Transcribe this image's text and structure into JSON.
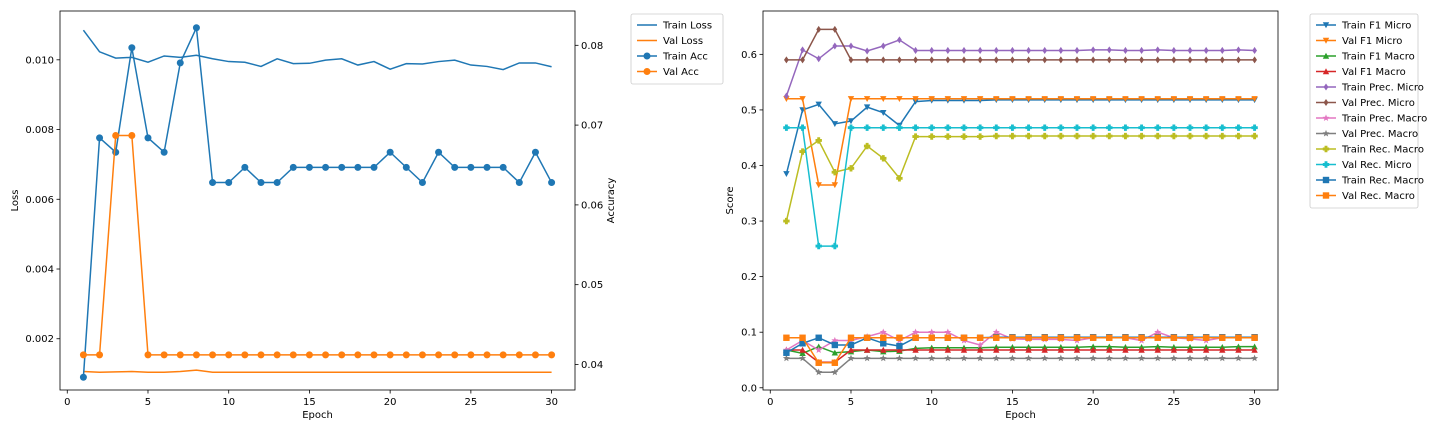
{
  "chart_data": [
    {
      "type": "line",
      "xlabel": "Epoch",
      "ylabel": "Loss",
      "ylabel_right": "Accuracy",
      "xlim": [
        -0.45,
        31.45
      ],
      "ylim": [
        0.00053,
        0.0114
      ],
      "ylim_right": [
        0.0368,
        0.0843
      ],
      "xticks": [
        "0",
        "5",
        "10",
        "15",
        "20",
        "25",
        "30"
      ],
      "yticks": [
        "0.002",
        "0.004",
        "0.006",
        "0.008",
        "0.010"
      ],
      "yticks_right": [
        "0.04",
        "0.05",
        "0.06",
        "0.07",
        "0.08"
      ],
      "legend_position": "outside-right",
      "x": [
        1,
        2,
        3,
        4,
        5,
        6,
        7,
        8,
        9,
        10,
        11,
        12,
        13,
        14,
        15,
        16,
        17,
        18,
        19,
        20,
        21,
        22,
        23,
        24,
        25,
        26,
        27,
        28,
        29,
        30
      ],
      "series": [
        {
          "name": "Train Loss",
          "axis": "left",
          "color": "#1f77b4",
          "marker": "none",
          "values": [
            0.01085,
            0.01023,
            0.01005,
            0.01007,
            0.00993,
            0.01011,
            0.01007,
            0.01013,
            0.01003,
            0.00995,
            0.00993,
            0.00981,
            0.01003,
            0.00989,
            0.0099,
            0.00999,
            0.01003,
            0.00985,
            0.00995,
            0.00973,
            0.00989,
            0.00988,
            0.00995,
            0.00999,
            0.00985,
            0.00981,
            0.00972,
            0.00991,
            0.00991,
            0.0098
          ]
        },
        {
          "name": "Val Loss",
          "axis": "left",
          "color": "#ff7f0e",
          "marker": "none",
          "values": [
            0.00106,
            0.00104,
            0.00105,
            0.00106,
            0.00104,
            0.00104,
            0.00106,
            0.0011,
            0.00104,
            0.00104,
            0.00104,
            0.00104,
            0.00104,
            0.00104,
            0.00104,
            0.00104,
            0.00104,
            0.00104,
            0.00104,
            0.00104,
            0.00104,
            0.00104,
            0.00104,
            0.00104,
            0.00104,
            0.00104,
            0.00104,
            0.00104,
            0.00104,
            0.00104
          ]
        },
        {
          "name": "Train Acc",
          "axis": "right",
          "color": "#1f77b4",
          "marker": "circle",
          "values": [
            0.0384,
            0.0684,
            0.0666,
            0.0797,
            0.0684,
            0.0666,
            0.0778,
            0.0822,
            0.0628,
            0.0628,
            0.0647,
            0.0628,
            0.0628,
            0.0647,
            0.0647,
            0.0647,
            0.0647,
            0.0647,
            0.0647,
            0.0666,
            0.0647,
            0.0628,
            0.0666,
            0.0647,
            0.0647,
            0.0647,
            0.0647,
            0.0628,
            0.0666,
            0.0628
          ]
        },
        {
          "name": "Val Acc",
          "axis": "right",
          "color": "#ff7f0e",
          "marker": "circle",
          "values": [
            0.0412,
            0.0412,
            0.0687,
            0.0687,
            0.0412,
            0.0412,
            0.0412,
            0.0412,
            0.0412,
            0.0412,
            0.0412,
            0.0412,
            0.0412,
            0.0412,
            0.0412,
            0.0412,
            0.0412,
            0.0412,
            0.0412,
            0.0412,
            0.0412,
            0.0412,
            0.0412,
            0.0412,
            0.0412,
            0.0412,
            0.0412,
            0.0412,
            0.0412,
            0.0412
          ]
        }
      ]
    },
    {
      "type": "line",
      "xlabel": "Epoch",
      "ylabel": "Score",
      "xlim": [
        -0.45,
        31.45
      ],
      "ylim": [
        -0.004,
        0.678
      ],
      "xticks": [
        "0",
        "5",
        "10",
        "15",
        "20",
        "25",
        "30"
      ],
      "yticks": [
        "0.0",
        "0.1",
        "0.2",
        "0.3",
        "0.4",
        "0.5",
        "0.6"
      ],
      "legend_position": "outside-right",
      "x": [
        1,
        2,
        3,
        4,
        5,
        6,
        7,
        8,
        9,
        10,
        11,
        12,
        13,
        14,
        15,
        16,
        17,
        18,
        19,
        20,
        21,
        22,
        23,
        24,
        25,
        26,
        27,
        28,
        29,
        30
      ],
      "series": [
        {
          "name": "Train F1 Micro",
          "color": "#1f77b4",
          "marker": "triangle-down",
          "values": [
            0.385,
            0.5,
            0.51,
            0.475,
            0.48,
            0.505,
            0.495,
            0.472,
            0.515,
            0.517,
            0.517,
            0.517,
            0.517,
            0.518,
            0.518,
            0.518,
            0.518,
            0.518,
            0.518,
            0.518,
            0.518,
            0.518,
            0.518,
            0.518,
            0.518,
            0.518,
            0.518,
            0.518,
            0.518,
            0.518
          ]
        },
        {
          "name": "Val F1 Micro",
          "color": "#ff7f0e",
          "marker": "triangle-down",
          "values": [
            0.52,
            0.52,
            0.365,
            0.365,
            0.52,
            0.52,
            0.52,
            0.52,
            0.52,
            0.52,
            0.52,
            0.52,
            0.52,
            0.52,
            0.52,
            0.52,
            0.52,
            0.52,
            0.52,
            0.52,
            0.52,
            0.52,
            0.52,
            0.52,
            0.52,
            0.52,
            0.52,
            0.52,
            0.52,
            0.52
          ]
        },
        {
          "name": "Train F1 Macro",
          "color": "#2ca02c",
          "marker": "triangle-up",
          "values": [
            0.068,
            0.062,
            0.074,
            0.063,
            0.065,
            0.068,
            0.065,
            0.066,
            0.071,
            0.072,
            0.072,
            0.072,
            0.072,
            0.073,
            0.073,
            0.073,
            0.073,
            0.073,
            0.073,
            0.074,
            0.074,
            0.073,
            0.073,
            0.074,
            0.073,
            0.073,
            0.073,
            0.073,
            0.074,
            0.074
          ]
        },
        {
          "name": "Val F1 Macro",
          "color": "#d62728",
          "marker": "triangle-up",
          "values": [
            0.068,
            0.068,
            0.046,
            0.046,
            0.068,
            0.068,
            0.068,
            0.068,
            0.068,
            0.068,
            0.068,
            0.068,
            0.068,
            0.068,
            0.068,
            0.068,
            0.068,
            0.068,
            0.068,
            0.068,
            0.068,
            0.068,
            0.068,
            0.068,
            0.068,
            0.068,
            0.068,
            0.068,
            0.068,
            0.068
          ]
        },
        {
          "name": "Train Prec. Micro",
          "color": "#9467bd",
          "marker": "diamond",
          "values": [
            0.525,
            0.608,
            0.592,
            0.615,
            0.615,
            0.606,
            0.615,
            0.626,
            0.607,
            0.607,
            0.607,
            0.607,
            0.607,
            0.607,
            0.607,
            0.607,
            0.607,
            0.607,
            0.607,
            0.608,
            0.608,
            0.607,
            0.607,
            0.608,
            0.607,
            0.607,
            0.607,
            0.607,
            0.608,
            0.607
          ]
        },
        {
          "name": "Val Prec. Micro",
          "color": "#8c564b",
          "marker": "diamond",
          "values": [
            0.59,
            0.59,
            0.645,
            0.645,
            0.59,
            0.59,
            0.59,
            0.59,
            0.59,
            0.59,
            0.59,
            0.59,
            0.59,
            0.59,
            0.59,
            0.59,
            0.59,
            0.59,
            0.59,
            0.59,
            0.59,
            0.59,
            0.59,
            0.59,
            0.59,
            0.59,
            0.59,
            0.59,
            0.59,
            0.59
          ]
        },
        {
          "name": "Train Prec. Macro",
          "color": "#e377c2",
          "marker": "star",
          "values": [
            0.068,
            0.085,
            0.068,
            0.085,
            0.085,
            0.092,
            0.1,
            0.085,
            0.1,
            0.1,
            0.1,
            0.085,
            0.077,
            0.1,
            0.088,
            0.087,
            0.087,
            0.087,
            0.085,
            0.09,
            0.09,
            0.09,
            0.085,
            0.1,
            0.09,
            0.088,
            0.085,
            0.09,
            0.09,
            0.09
          ]
        },
        {
          "name": "Val Prec. Macro",
          "color": "#7f7f7f",
          "marker": "star",
          "values": [
            0.053,
            0.053,
            0.028,
            0.028,
            0.053,
            0.053,
            0.053,
            0.053,
            0.053,
            0.053,
            0.053,
            0.053,
            0.053,
            0.053,
            0.053,
            0.053,
            0.053,
            0.053,
            0.053,
            0.053,
            0.053,
            0.053,
            0.053,
            0.053,
            0.053,
            0.053,
            0.053,
            0.053,
            0.053,
            0.053
          ]
        },
        {
          "name": "Train Rec. Macro",
          "color": "#bcbd22",
          "marker": "plus",
          "values": [
            0.3,
            0.425,
            0.445,
            0.388,
            0.395,
            0.435,
            0.413,
            0.377,
            0.452,
            0.452,
            0.452,
            0.452,
            0.452,
            0.453,
            0.453,
            0.453,
            0.453,
            0.453,
            0.453,
            0.453,
            0.453,
            0.453,
            0.453,
            0.453,
            0.453,
            0.453,
            0.453,
            0.453,
            0.453,
            0.453
          ]
        },
        {
          "name": "Val Rec. Micro",
          "color": "#17becf",
          "marker": "plus",
          "values": [
            0.468,
            0.468,
            0.255,
            0.255,
            0.468,
            0.468,
            0.468,
            0.468,
            0.468,
            0.468,
            0.468,
            0.468,
            0.468,
            0.468,
            0.468,
            0.468,
            0.468,
            0.468,
            0.468,
            0.468,
            0.468,
            0.468,
            0.468,
            0.468,
            0.468,
            0.468,
            0.468,
            0.468,
            0.468,
            0.468
          ]
        },
        {
          "name": "Train Rec. Macro",
          "color": "#1f77b4",
          "marker": "square",
          "values": [
            0.063,
            0.08,
            0.09,
            0.077,
            0.077,
            0.09,
            0.08,
            0.075,
            0.09,
            0.09,
            0.09,
            0.09,
            0.09,
            0.091,
            0.091,
            0.091,
            0.091,
            0.091,
            0.091,
            0.091,
            0.091,
            0.091,
            0.091,
            0.091,
            0.091,
            0.091,
            0.091,
            0.091,
            0.091,
            0.091
          ]
        },
        {
          "name": "Val Rec. Macro",
          "color": "#ff7f0e",
          "marker": "square",
          "values": [
            0.09,
            0.09,
            0.045,
            0.045,
            0.09,
            0.09,
            0.09,
            0.09,
            0.09,
            0.09,
            0.09,
            0.09,
            0.09,
            0.09,
            0.09,
            0.09,
            0.09,
            0.09,
            0.09,
            0.09,
            0.09,
            0.09,
            0.09,
            0.09,
            0.09,
            0.09,
            0.09,
            0.09,
            0.09,
            0.09
          ]
        }
      ]
    }
  ]
}
